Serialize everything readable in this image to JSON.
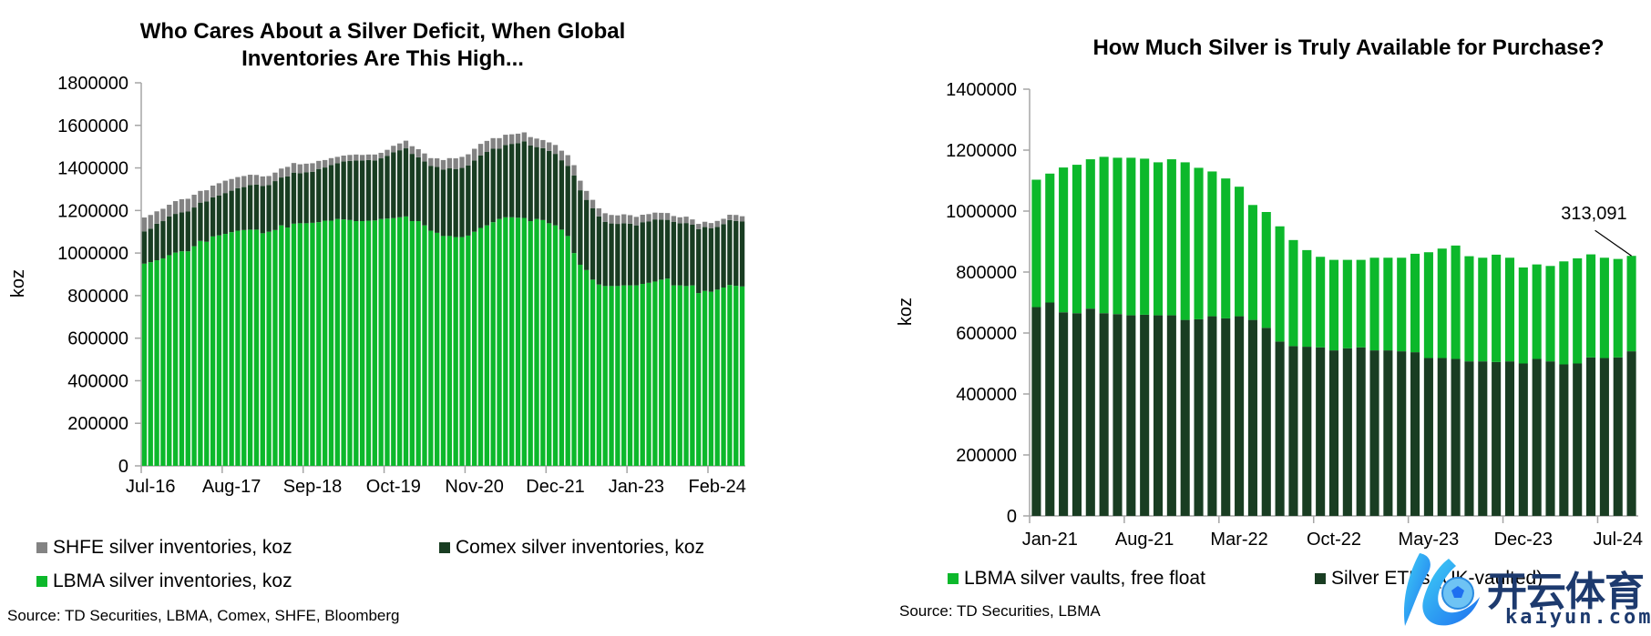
{
  "colors": {
    "lbma_light": "#0cb82b",
    "comex_dark": "#193d22",
    "shfe_gray": "#838383",
    "axis": "#a6a6a6",
    "watermark": "#1d3a6e"
  },
  "watermark": {
    "cn": "开云体育",
    "en": "kaiyun.com"
  },
  "chart_data": [
    {
      "type": "bar",
      "stacked": true,
      "title": "Who Cares About a Silver Deficit, When Global Inventories Are This High...",
      "title_lines": [
        "Who Cares About a Silver Deficit, When Global",
        "Inventories Are This High..."
      ],
      "xlabel": "",
      "ylabel": "koz",
      "ylim": [
        0,
        1800000
      ],
      "yticks": [
        "0",
        "200000",
        "400000",
        "600000",
        "800000",
        "1000000",
        "1200000",
        "1400000",
        "1600000",
        "1800000"
      ],
      "ytick_values": [
        0,
        200000,
        400000,
        600000,
        800000,
        1000000,
        1200000,
        1400000,
        1600000,
        1800000
      ],
      "xtick_labels": [
        "Jul-16",
        "Aug-17",
        "Sep-18",
        "Oct-19",
        "Nov-20",
        "Dec-21",
        "Jan-23",
        "Feb-24"
      ],
      "xtick_every": 13,
      "x_start": "Jul-16",
      "grid": false,
      "legend_position": "bottom",
      "legend": [
        "SHFE silver inventories, koz",
        "Comex silver inventories, koz",
        "LBMA silver inventories, koz"
      ],
      "source": "Source: TD Securities, LBMA, Comex, SHFE, Bloomberg",
      "series": [
        {
          "name": "LBMA silver inventories, koz",
          "color": "#0cb82b",
          "values": [
            950000,
            957000,
            966000,
            975000,
            990000,
            1002000,
            1008000,
            1008000,
            1032000,
            1057000,
            1053000,
            1078000,
            1083000,
            1090000,
            1098000,
            1105000,
            1108000,
            1110000,
            1110000,
            1093000,
            1100000,
            1108000,
            1130000,
            1120000,
            1138000,
            1140000,
            1140000,
            1142000,
            1145000,
            1152000,
            1152000,
            1160000,
            1158000,
            1155000,
            1150000,
            1150000,
            1152000,
            1153000,
            1160000,
            1162000,
            1164000,
            1168000,
            1172000,
            1150000,
            1150000,
            1130000,
            1105000,
            1095000,
            1080000,
            1080000,
            1075000,
            1075000,
            1082000,
            1100000,
            1118000,
            1130000,
            1145000,
            1160000,
            1168000,
            1168000,
            1166000,
            1165000,
            1150000,
            1160000,
            1155000,
            1140000,
            1130000,
            1110000,
            1080000,
            1000000,
            945000,
            920000,
            875000,
            852000,
            845000,
            845000,
            845000,
            848000,
            848000,
            848000,
            855000,
            860000,
            866000,
            875000,
            880000,
            848000,
            848000,
            845000,
            848000,
            812000,
            822000,
            818000,
            828000,
            838000,
            850000,
            846000,
            843000
          ],
          "sample_note": "monthly values estimated from bar heights"
        },
        {
          "name": "Comex silver inventories, koz",
          "color": "#193d22",
          "values": [
            152000,
            157000,
            172000,
            175000,
            182000,
            182000,
            183000,
            187000,
            182000,
            180000,
            190000,
            184000,
            187000,
            192000,
            195000,
            200000,
            202000,
            210000,
            212000,
            222000,
            220000,
            230000,
            225000,
            240000,
            240000,
            235000,
            240000,
            240000,
            250000,
            250000,
            262000,
            262000,
            272000,
            278000,
            285000,
            285000,
            285000,
            282000,
            285000,
            295000,
            310000,
            315000,
            320000,
            316000,
            300000,
            300000,
            305000,
            310000,
            312000,
            318000,
            320000,
            325000,
            330000,
            335000,
            340000,
            345000,
            345000,
            330000,
            340000,
            345000,
            350000,
            360000,
            355000,
            338000,
            338000,
            340000,
            336000,
            326000,
            330000,
            365000,
            350000,
            330000,
            335000,
            320000,
            302000,
            294000,
            292000,
            292000,
            290000,
            282000,
            290000,
            288000,
            292000,
            282000,
            276000,
            298000,
            292000,
            296000,
            285000,
            300000,
            300000,
            298000,
            295000,
            298000,
            305000,
            305000,
            305000
          ],
          "sample_note": "monthly values estimated from bar heights"
        },
        {
          "name": "SHFE silver inventories, koz",
          "color": "#838383",
          "values": [
            65000,
            65000,
            58000,
            58000,
            55000,
            60000,
            62000,
            60000,
            60000,
            55000,
            52000,
            55000,
            58000,
            58000,
            55000,
            52000,
            52000,
            48000,
            45000,
            45000,
            42000,
            40000,
            42000,
            45000,
            45000,
            42000,
            40000,
            40000,
            38000,
            35000,
            32000,
            30000,
            28000,
            28000,
            28000,
            26000,
            26000,
            28000,
            26000,
            28000,
            30000,
            32000,
            36000,
            36000,
            38000,
            38000,
            36000,
            40000,
            45000,
            48000,
            50000,
            52000,
            52000,
            55000,
            55000,
            52000,
            50000,
            50000,
            48000,
            45000,
            45000,
            42000,
            40000,
            40000,
            38000,
            40000,
            42000,
            45000,
            50000,
            48000,
            45000,
            42000,
            40000,
            38000,
            40000,
            40000,
            40000,
            42000,
            40000,
            40000,
            35000,
            35000,
            32000,
            32000,
            32000,
            28000,
            28000,
            30000,
            25000,
            25000,
            25000,
            25000,
            28000,
            25000,
            25000,
            28000,
            25000
          ],
          "sample_note": "monthly values estimated from bar heights"
        }
      ]
    },
    {
      "type": "bar",
      "stacked": true,
      "title": "How Much Silver is Truly Available for Purchase?",
      "xlabel": "",
      "ylabel": "koz",
      "ylim": [
        0,
        1400000
      ],
      "yticks": [
        "0",
        "200000",
        "400000",
        "600000",
        "800000",
        "1000000",
        "1200000",
        "1400000"
      ],
      "ytick_values": [
        0,
        200000,
        400000,
        600000,
        800000,
        1000000,
        1200000,
        1400000
      ],
      "xtick_labels": [
        "Jan-21",
        "Aug-21",
        "Mar-22",
        "Oct-22",
        "May-23",
        "Dec-23",
        "Jul-24"
      ],
      "xtick_every": 7,
      "x_start": "Jan-21",
      "grid": false,
      "legend_position": "bottom",
      "legend": [
        "LBMA silver vaults, free float",
        "Silver ETFs (UK-vaulted)"
      ],
      "annotation": {
        "text": "313,091",
        "target": "last LBMA free-float bar"
      },
      "source": "Source: TD Securities, LBMA",
      "series": [
        {
          "name": "Silver ETFs (UK-vaulted)",
          "color": "#193d22",
          "values": [
            685000,
            700000,
            668000,
            665000,
            680000,
            665000,
            662000,
            658000,
            660000,
            658000,
            658000,
            643000,
            645000,
            655000,
            648000,
            655000,
            643000,
            617000,
            572000,
            557000,
            555000,
            553000,
            543000,
            550000,
            553000,
            543000,
            543000,
            540000,
            537000,
            518000,
            518000,
            515000,
            507000,
            507000,
            505000,
            507000,
            500000,
            515000,
            507000,
            497000,
            500000,
            520000,
            518000,
            520000,
            540000
          ],
          "sample_note": "monthly values estimated from bar heights"
        },
        {
          "name": "LBMA silver vaults, free float",
          "color": "#0cb82b",
          "values": [
            418000,
            423000,
            475000,
            487000,
            490000,
            513000,
            513000,
            517000,
            512000,
            502000,
            512000,
            517000,
            497000,
            475000,
            459000,
            425000,
            377000,
            380000,
            378000,
            348000,
            317000,
            297000,
            297000,
            290000,
            287000,
            304000,
            304000,
            307000,
            323000,
            347000,
            359000,
            372000,
            345000,
            340000,
            352000,
            340000,
            315000,
            310000,
            313000,
            338000,
            345000,
            338000,
            329000,
            323000,
            313091
          ],
          "sample_note": "monthly values estimated; last value labeled 313,091"
        }
      ]
    }
  ]
}
